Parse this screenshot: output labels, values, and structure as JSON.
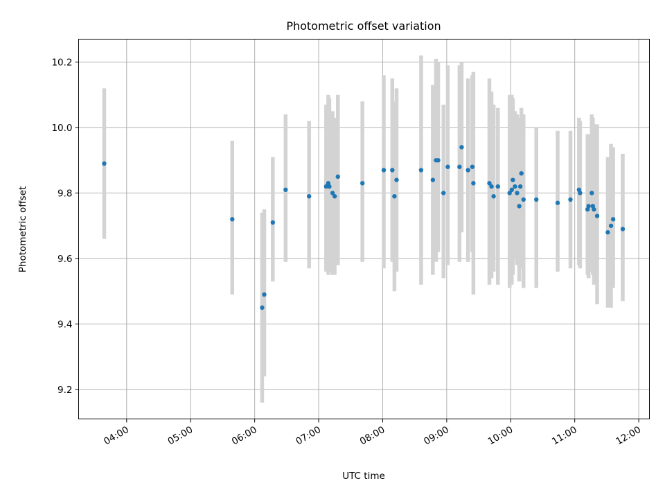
{
  "chart_data": {
    "type": "scatter",
    "title": "Photometric offset variation",
    "xlabel": "UTC time",
    "ylabel": "Photometric offset",
    "x_ticks": [
      "04:00",
      "05:00",
      "06:00",
      "07:00",
      "08:00",
      "09:00",
      "10:00",
      "11:00",
      "12:00"
    ],
    "y_ticks": [
      "9.2",
      "9.4",
      "9.6",
      "9.8",
      "10.0",
      "10.2"
    ],
    "xlim": [
      "03:15",
      "12:10"
    ],
    "ylim": [
      9.11,
      10.27
    ],
    "grid": true,
    "marker_color": "#1f77b4",
    "errorbar_color": "#d3d3d3",
    "series": [
      {
        "x": [
          "03:39",
          "05:39",
          "06:07",
          "06:09",
          "06:17",
          "06:29",
          "06:51",
          "07:07",
          "07:09",
          "07:10",
          "07:13",
          "07:15",
          "07:18",
          "07:41",
          "08:01",
          "08:09",
          "08:11",
          "08:13",
          "08:36",
          "08:47",
          "08:50",
          "08:52",
          "08:57",
          "09:01",
          "09:12",
          "09:14",
          "09:20",
          "09:24",
          "09:25",
          "09:40",
          "09:42",
          "09:44",
          "09:48",
          "09:59",
          "10:01",
          "10:02",
          "10:04",
          "10:06",
          "10:08",
          "10:09",
          "10:10",
          "10:12",
          "10:24",
          "10:44",
          "10:56",
          "11:04",
          "11:05",
          "11:12",
          "11:13",
          "11:16",
          "11:17",
          "11:18",
          "11:21",
          "11:31",
          "11:34",
          "11:36",
          "11:45"
        ],
        "y": [
          9.89,
          9.72,
          9.45,
          9.49,
          9.71,
          9.81,
          9.79,
          9.82,
          9.83,
          9.82,
          9.8,
          9.79,
          9.85,
          9.83,
          9.87,
          9.87,
          9.79,
          9.84,
          9.87,
          9.84,
          9.9,
          9.9,
          9.8,
          9.88,
          9.88,
          9.94,
          9.87,
          9.88,
          9.83,
          9.83,
          9.82,
          9.79,
          9.82,
          9.8,
          9.81,
          9.84,
          9.82,
          9.8,
          9.76,
          9.82,
          9.86,
          9.78,
          9.78,
          9.77,
          9.78,
          9.81,
          9.8,
          9.75,
          9.76,
          9.8,
          9.76,
          9.75,
          9.73,
          9.68,
          9.7,
          9.72,
          9.69
        ],
        "yerr_low": [
          9.66,
          9.49,
          9.16,
          9.24,
          9.53,
          9.59,
          9.57,
          9.56,
          9.55,
          9.56,
          9.55,
          9.55,
          9.58,
          9.59,
          9.57,
          9.59,
          9.5,
          9.56,
          9.52,
          9.55,
          9.59,
          9.62,
          9.54,
          9.58,
          9.59,
          9.68,
          9.59,
          9.62,
          9.49,
          9.52,
          9.54,
          9.56,
          9.52,
          9.51,
          9.52,
          9.55,
          9.6,
          9.58,
          9.53,
          9.57,
          9.63,
          9.51,
          9.51,
          9.56,
          9.57,
          9.58,
          9.57,
          9.55,
          9.54,
          9.56,
          9.55,
          9.52,
          9.46,
          9.45,
          9.45,
          9.51,
          9.47
        ],
        "yerr_high": [
          10.12,
          9.96,
          9.74,
          9.75,
          9.91,
          10.04,
          10.02,
          10.07,
          10.1,
          10.09,
          10.05,
          10.03,
          10.1,
          10.08,
          10.16,
          10.15,
          10.08,
          10.12,
          10.22,
          10.13,
          10.21,
          10.2,
          10.07,
          10.19,
          10.19,
          10.2,
          10.15,
          10.16,
          10.17,
          10.15,
          10.11,
          10.07,
          10.06,
          10.1,
          10.1,
          10.09,
          10.05,
          10.04,
          10.03,
          10.02,
          10.06,
          10.04,
          10.0,
          9.99,
          9.99,
          10.03,
          10.02,
          9.98,
          9.98,
          10.04,
          10.03,
          10.01,
          10.01,
          9.91,
          9.95,
          9.94,
          9.92
        ]
      }
    ]
  }
}
